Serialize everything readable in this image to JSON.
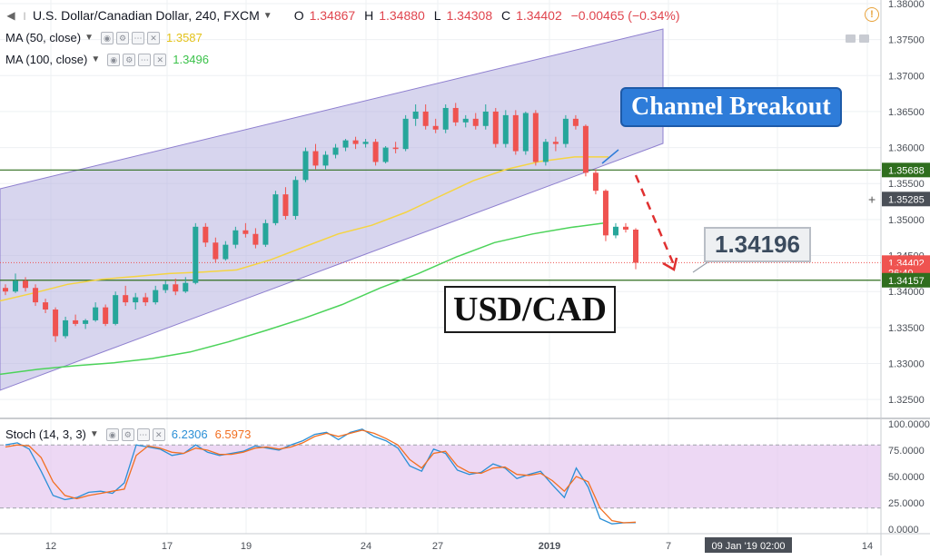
{
  "header": {
    "symbol": "U.S. Dollar/Canadian Dollar, 240, FXCM",
    "open_label": "O",
    "open": "1.34867",
    "high_label": "H",
    "high": "1.34880",
    "low_label": "L",
    "low": "1.34308",
    "close_label": "C",
    "close": "1.34402",
    "change": "−0.00465 (−0.34%)",
    "ma50_label": "MA (50, close)",
    "ma50_value": "1.3587",
    "ma100_label": "MA (100, close)",
    "ma100_value": "1.3496",
    "stoch_label": "Stoch (14, 3, 3)",
    "stoch_k": "6.2306",
    "stoch_d": "6.5973"
  },
  "annotations": {
    "callout": "Channel Breakout",
    "target": "1.34196",
    "pair": "USD/CAD"
  },
  "colors": {
    "up": "#26a69a",
    "down": "#ef5350",
    "ma50": "#f5d442",
    "ma100": "#4cd35a",
    "channel_fill": "#b7b3e0",
    "stoch_k": "#2a8fd6",
    "stoch_d": "#f26f21",
    "level_line": "#2f6e1e",
    "callout": "#2e7cd9"
  },
  "chart_data": [
    {
      "type": "candlestick",
      "title": "U.S. Dollar/Canadian Dollar, 240, FXCM",
      "yaxis_ticks": [
        "1.38000",
        "1.37500",
        "1.37000",
        "1.36500",
        "1.36000",
        "1.35500",
        "1.35000",
        "1.34500",
        "1.34000",
        "1.33500",
        "1.33000",
        "1.32500"
      ],
      "ylim": [
        1.3225,
        1.3805
      ],
      "xaxis_ticks": [
        "12",
        "17",
        "19",
        "24",
        "27",
        "2019",
        "7",
        "09 Jan '19   02:00",
        "14"
      ],
      "price_labels": [
        {
          "text": "1.35688",
          "value": 1.35688,
          "bg": "#2f6e1e"
        },
        {
          "text": "1.35285",
          "value": 1.35285,
          "bg": "#4a4f57"
        },
        {
          "text": "1.34402",
          "value": 1.34402,
          "bg": "#ef5350"
        },
        {
          "text": "26:40",
          "value": 1.34262,
          "bg": "#ef5350"
        },
        {
          "text": "1.34157",
          "value": 1.34157,
          "bg": "#2f6e1e"
        }
      ],
      "horizontal_levels": [
        1.35688,
        1.34157
      ],
      "series": [
        {
          "name": "MA (50, close)",
          "values": [
            1.3387,
            1.3398,
            1.341,
            1.3417,
            1.3421,
            1.3425,
            1.3427,
            1.343,
            1.3444,
            1.3462,
            1.348,
            1.3492,
            1.351,
            1.3532,
            1.3554,
            1.357,
            1.3581,
            1.3587,
            1.3587
          ]
        },
        {
          "name": "MA (100, close)",
          "values": [
            1.3285,
            1.3292,
            1.3297,
            1.3301,
            1.3307,
            1.3316,
            1.333,
            1.3346,
            1.3363,
            1.3382,
            1.3405,
            1.3425,
            1.3448,
            1.3468,
            1.348,
            1.3489,
            1.3496
          ]
        }
      ],
      "candles": [
        [
          1.3405,
          1.341,
          1.3395,
          1.34
        ],
        [
          1.34,
          1.3425,
          1.3398,
          1.3415
        ],
        [
          1.3415,
          1.342,
          1.34,
          1.3405
        ],
        [
          1.3405,
          1.341,
          1.338,
          1.3385
        ],
        [
          1.3385,
          1.339,
          1.337,
          1.3375
        ],
        [
          1.3375,
          1.3378,
          1.333,
          1.3338
        ],
        [
          1.3338,
          1.3365,
          1.3335,
          1.336
        ],
        [
          1.336,
          1.3368,
          1.3352,
          1.3355
        ],
        [
          1.3355,
          1.3362,
          1.3348,
          1.336
        ],
        [
          1.336,
          1.3385,
          1.3358,
          1.3378
        ],
        [
          1.3378,
          1.3382,
          1.3352,
          1.3355
        ],
        [
          1.3355,
          1.34,
          1.3353,
          1.3395
        ],
        [
          1.3395,
          1.3408,
          1.338,
          1.3385
        ],
        [
          1.3385,
          1.3398,
          1.3375,
          1.3392
        ],
        [
          1.3392,
          1.3398,
          1.338,
          1.3385
        ],
        [
          1.3385,
          1.3408,
          1.3382,
          1.3402
        ],
        [
          1.3402,
          1.3415,
          1.3398,
          1.341
        ],
        [
          1.341,
          1.3418,
          1.3395,
          1.34
        ],
        [
          1.34,
          1.342,
          1.3398,
          1.3412
        ],
        [
          1.3412,
          1.3495,
          1.341,
          1.349
        ],
        [
          1.349,
          1.3495,
          1.3462,
          1.3468
        ],
        [
          1.3468,
          1.3475,
          1.344,
          1.3445
        ],
        [
          1.3445,
          1.347,
          1.3443,
          1.3465
        ],
        [
          1.3465,
          1.349,
          1.346,
          1.3485
        ],
        [
          1.3485,
          1.3495,
          1.3475,
          1.348
        ],
        [
          1.348,
          1.3488,
          1.346,
          1.3465
        ],
        [
          1.3465,
          1.35,
          1.3462,
          1.3495
        ],
        [
          1.3495,
          1.354,
          1.3492,
          1.3535
        ],
        [
          1.3535,
          1.3545,
          1.35,
          1.3505
        ],
        [
          1.3505,
          1.356,
          1.35,
          1.3555
        ],
        [
          1.3555,
          1.36,
          1.3552,
          1.3595
        ],
        [
          1.3595,
          1.3605,
          1.357,
          1.3575
        ],
        [
          1.3575,
          1.3595,
          1.357,
          1.359
        ],
        [
          1.359,
          1.3605,
          1.3585,
          1.36
        ],
        [
          1.36,
          1.3612,
          1.3595,
          1.361
        ],
        [
          1.361,
          1.3615,
          1.3598,
          1.3605
        ],
        [
          1.3605,
          1.3612,
          1.36,
          1.3608
        ],
        [
          1.3608,
          1.3612,
          1.3575,
          1.358
        ],
        [
          1.358,
          1.3602,
          1.3578,
          1.36
        ],
        [
          1.36,
          1.3608,
          1.3592,
          1.3598
        ],
        [
          1.3598,
          1.3645,
          1.3595,
          1.364
        ],
        [
          1.364,
          1.366,
          1.363,
          1.365
        ],
        [
          1.365,
          1.366,
          1.3625,
          1.363
        ],
        [
          1.363,
          1.364,
          1.362,
          1.3625
        ],
        [
          1.3625,
          1.366,
          1.362,
          1.3655
        ],
        [
          1.3655,
          1.3662,
          1.363,
          1.3635
        ],
        [
          1.3635,
          1.3645,
          1.3628,
          1.364
        ],
        [
          1.364,
          1.3648,
          1.3625,
          1.363
        ],
        [
          1.363,
          1.366,
          1.3625,
          1.365
        ],
        [
          1.365,
          1.3655,
          1.36,
          1.3605
        ],
        [
          1.3605,
          1.3652,
          1.36,
          1.3645
        ],
        [
          1.3645,
          1.3652,
          1.359,
          1.3595
        ],
        [
          1.3595,
          1.365,
          1.359,
          1.3648
        ],
        [
          1.3648,
          1.3652,
          1.3575,
          1.358
        ],
        [
          1.358,
          1.3612,
          1.3575,
          1.3608
        ],
        [
          1.3608,
          1.3615,
          1.3595,
          1.3605
        ],
        [
          1.3605,
          1.3645,
          1.36,
          1.364
        ],
        [
          1.364,
          1.3645,
          1.3625,
          1.363
        ],
        [
          1.363,
          1.3632,
          1.356,
          1.3565
        ],
        [
          1.3565,
          1.357,
          1.3535,
          1.354
        ],
        [
          1.354,
          1.3542,
          1.347,
          1.3478
        ],
        [
          1.3478,
          1.3495,
          1.3474,
          1.349
        ],
        [
          1.349,
          1.3495,
          1.3482,
          1.3486
        ],
        [
          1.3486,
          1.3488,
          1.3431,
          1.344
        ]
      ]
    },
    {
      "type": "line",
      "title": "Stoch (14, 3, 3)",
      "yaxis_ticks": [
        "100.0000",
        "75.0000",
        "50.0000",
        "25.0000",
        "0.0000"
      ],
      "ylim": [
        0,
        100
      ],
      "band": [
        20,
        80
      ],
      "series": [
        {
          "name": "%K",
          "values": [
            80,
            82,
            76,
            55,
            32,
            28,
            30,
            35,
            36,
            34,
            44,
            80,
            78,
            76,
            70,
            72,
            80,
            73,
            70,
            72,
            74,
            79,
            77,
            75,
            80,
            84,
            90,
            92,
            85,
            92,
            95,
            88,
            84,
            77,
            60,
            55,
            76,
            72,
            56,
            52,
            54,
            62,
            58,
            48,
            52,
            55,
            42,
            30,
            58,
            40,
            10,
            5,
            6,
            6.2306
          ]
        },
        {
          "name": "%D",
          "values": [
            78,
            80,
            79,
            68,
            45,
            32,
            29,
            32,
            34,
            36,
            38,
            70,
            79,
            77,
            73,
            72,
            77,
            75,
            71,
            71,
            73,
            77,
            78,
            76,
            78,
            82,
            88,
            91,
            88,
            91,
            94,
            91,
            86,
            80,
            66,
            58,
            72,
            74,
            60,
            54,
            53,
            58,
            59,
            52,
            51,
            53,
            46,
            36,
            50,
            45,
            20,
            8,
            6,
            6.5973
          ]
        }
      ]
    }
  ]
}
